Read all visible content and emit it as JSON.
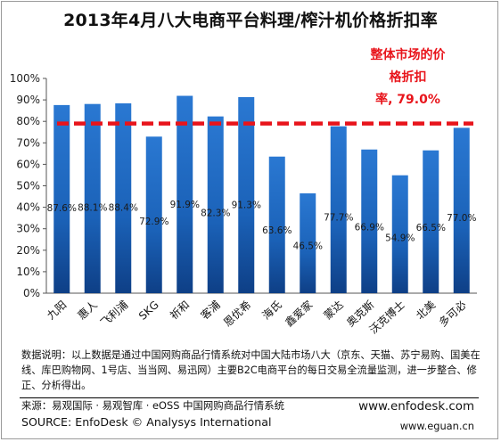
{
  "title": "2013年4月八大电商平台料理/榨汁机价格折扣率",
  "annotation": {
    "lines": [
      "整体市场的价",
      "格折扣",
      "率, 79.0%"
    ],
    "color": "#e8141b"
  },
  "note": "数据说明：以上数据是通过中国网购商品行情系统对中国大陆市场八大（京东、天猫、苏宁易购、国美在线、库巴购物网、1号店、当当网、易迅网）主要B2C电商平台的每日交易全流量监测，进一步整合、修正、分析得出。",
  "source_cn": "来源：易观国际 · 易观智库 · eOSS 中国网购商品行情系统",
  "source_en": "SOURCE: EnfoDesk © Analysys International",
  "url_1": "www.enfodesk.com",
  "url_2": "www.eguan.cn",
  "chart_data": {
    "type": "bar",
    "title": "2013年4月八大电商平台料理/榨汁机价格折扣率",
    "categories": [
      "九阳",
      "惠人",
      "飞利浦",
      "SKG",
      "祈和",
      "客浦",
      "恩优希",
      "海氏",
      "鑫爱家",
      "蒙达",
      "奥克斯",
      "沃克博士",
      "北美",
      "多可必"
    ],
    "values": [
      87.6,
      88.1,
      88.4,
      72.9,
      91.9,
      82.3,
      91.3,
      63.6,
      46.5,
      77.7,
      66.9,
      54.9,
      66.5,
      77.0
    ],
    "data_labels": [
      "87.6%",
      "88.1%",
      "88.4%",
      "72.9%",
      "91.9%",
      "82.3%",
      "91.3%",
      "63.6%",
      "46.5%",
      "77.7%",
      "66.9%",
      "54.9%",
      "66.5%",
      "77.0%"
    ],
    "ylim": [
      0,
      100
    ],
    "yticks": [
      "0%",
      "10%",
      "20%",
      "30%",
      "40%",
      "50%",
      "60%",
      "70%",
      "80%",
      "90%",
      "100%"
    ],
    "reference_line": {
      "value": 79.0,
      "style": "dashed",
      "color": "#e8141b"
    },
    "bar_color": "#1f6cc4",
    "grid": false,
    "legend": "none"
  }
}
